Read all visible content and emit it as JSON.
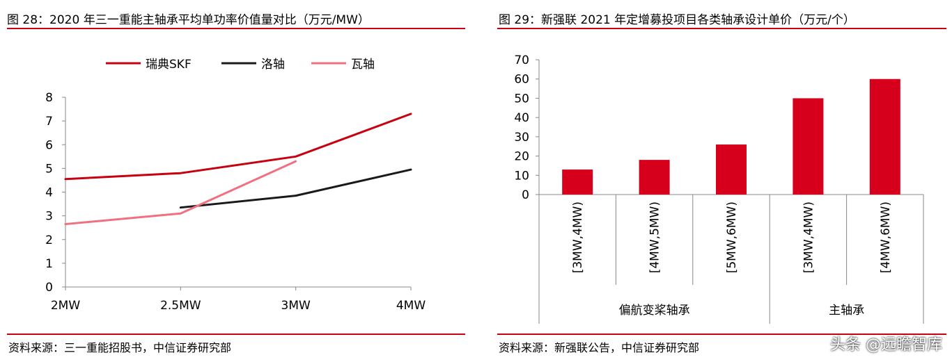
{
  "left": {
    "title": "图 28：2020 年三一重能主轴承平均单功率价值量对比（万元/MW）",
    "source": "资料来源：三一重能招股书，中信证券研究部"
  },
  "right": {
    "title": "图 29：新强联 2021 年定增募投项目各类轴承设计单价（万元/个）",
    "source": "资料来源：新强联公告，中信证券研究部"
  },
  "watermark": "头条 @远瞻智库",
  "colors": {
    "accent": "#c8000f",
    "skf": "#c8000f",
    "luozhou": "#1a1a1a",
    "wazhou": "#f07080",
    "bar": "#d6001c"
  },
  "chart_data": [
    {
      "type": "line",
      "categories": [
        "2MW",
        "2.5MW",
        "3MW",
        "4MW"
      ],
      "ylim": [
        0,
        8
      ],
      "yticks": [
        0,
        1,
        2,
        3,
        4,
        5,
        6,
        7,
        8
      ],
      "legend_position": "top",
      "series": [
        {
          "name": "瑞典SKF",
          "values": [
            4.55,
            4.8,
            5.5,
            7.3
          ]
        },
        {
          "name": "洛轴",
          "values": [
            null,
            3.35,
            3.85,
            4.95
          ]
        },
        {
          "name": "瓦轴",
          "values": [
            2.65,
            3.1,
            5.3,
            null
          ]
        }
      ]
    },
    {
      "type": "bar",
      "categories": [
        "[3MW,4MW)",
        "[4MW,5MW)",
        "[5MW,6MW)",
        "[3MW,4MW)",
        "[4MW,6MW)"
      ],
      "groups": [
        {
          "label": "偏航变桨轴承",
          "count": 3
        },
        {
          "label": "主轴承",
          "count": 2
        }
      ],
      "values": [
        13,
        18,
        26,
        50,
        60
      ],
      "ylim": [
        0,
        70
      ],
      "yticks": [
        0,
        10,
        20,
        30,
        40,
        50,
        60,
        70
      ]
    }
  ]
}
